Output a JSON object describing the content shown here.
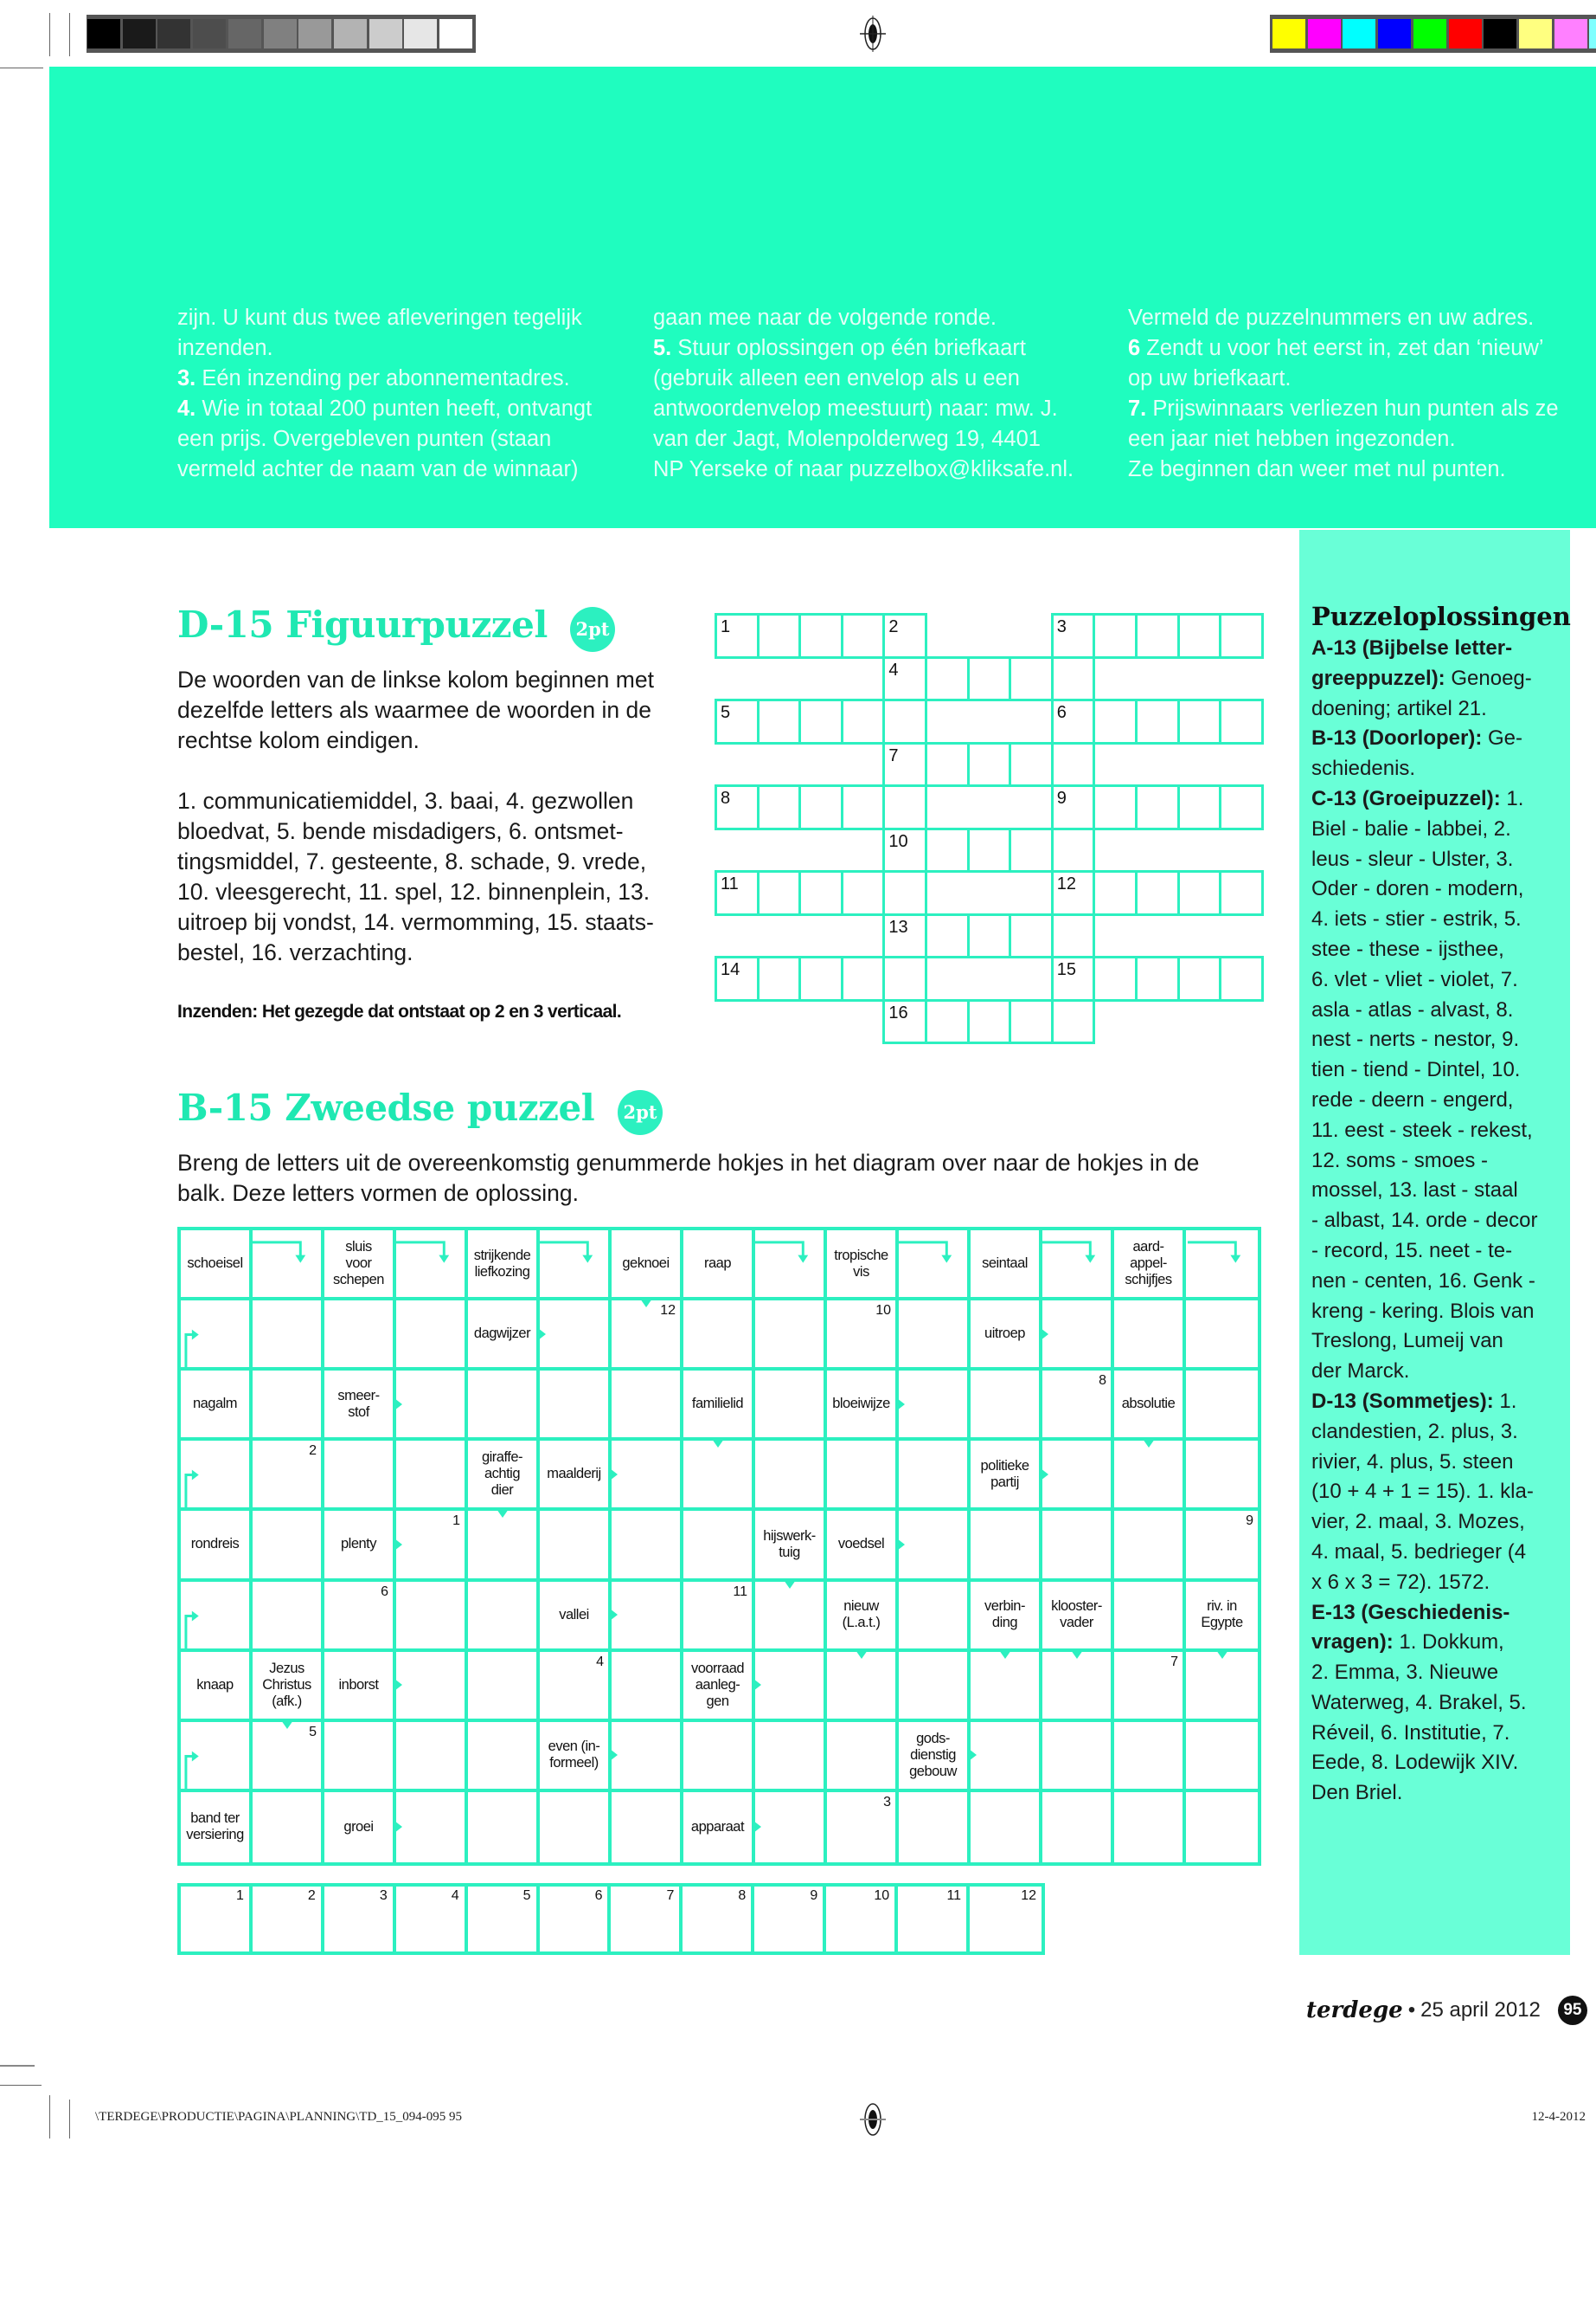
{
  "registration": {
    "gray_swatches": [
      "#000000",
      "#1a1a1a",
      "#333333",
      "#4d4d4d",
      "#666666",
      "#808080",
      "#999999",
      "#b3b3b3",
      "#cccccc",
      "#e6e6e6",
      "#ffffff"
    ],
    "color_swatches": [
      "#ffff00",
      "#ff00ff",
      "#00ffff",
      "#0000ff",
      "#00ff00",
      "#ff0000",
      "#000000",
      "#ffff80",
      "#ff80ff",
      "#80ffff"
    ]
  },
  "colors": {
    "accent": "#1ffdbf",
    "sidebar": "#69ffd7",
    "grid": "#2cf0c0",
    "title": "#1fe8b2"
  },
  "rules": {
    "columns": [
      [
        {
          "b": "",
          "t": "zijn. U kunt dus twee afleveringen tegelijk"
        },
        {
          "b": "",
          "t": "inzenden."
        },
        {
          "b": "3.",
          "t": " Eén inzending per abonnementadres."
        },
        {
          "b": "4.",
          "t": " Wie in totaal 200 punten heeft, ontvangt"
        },
        {
          "b": "",
          "t": "een prijs. Overgebleven punten (staan"
        },
        {
          "b": "",
          "t": "vermeld achter de naam van de winnaar)"
        }
      ],
      [
        {
          "b": "",
          "t": "gaan mee naar de volgende ronde."
        },
        {
          "b": "5.",
          "t": " Stuur oplossingen op één briefkaart"
        },
        {
          "b": "",
          "t": "(gebruik alleen een envelop als u een"
        },
        {
          "b": "",
          "t": "antwoordenvelop meestuurt) naar: mw. J."
        },
        {
          "b": "",
          "t": "van der Jagt, Molenpolderweg 19, 4401"
        },
        {
          "b": "",
          "t": "NP Yerseke of naar puzzelbox@kliksafe.nl."
        }
      ],
      [
        {
          "b": "",
          "t": "Vermeld de puzzelnummers en uw adres."
        },
        {
          "b": "6",
          "t": " Zendt u voor het eerst in, zet dan ‘nieuw’"
        },
        {
          "b": "",
          "t": "op uw briefkaart."
        },
        {
          "b": "7.",
          "t": " Prijswinnaars verliezen hun punten als ze"
        },
        {
          "b": "",
          "t": "een jaar niet hebben ingezonden."
        },
        {
          "b": "",
          "t": "Ze beginnen dan weer met nul punten."
        }
      ]
    ]
  },
  "d15": {
    "title": "D-15 Figuurpuzzel",
    "points": "2pt",
    "lines": [
      "De woorden van de linkse kolom beginnen met",
      "dezelfde letters als waarmee de woorden in de",
      "rechtse kolom eindigen.",
      "",
      "1. communicatiemiddel, 3. baai, 4. gezwollen",
      "bloedvat, 5. bende misdadigers, 6. ontsmet-",
      "tingsmiddel, 7. gesteente, 8. schade, 9. vrede,",
      "10. vleesgerecht, 11. spel, 12. binnenplein, 13.",
      "uitroep bij vondst, 14. vermomming, 15. staats-",
      "bestel, 16. verzachting."
    ],
    "submit": "Inzenden: Het gezegde dat ontstaat op 2 en 3 verticaal.",
    "grid": [
      [
        "1",
        "",
        "",
        "",
        "2",
        null,
        null,
        null,
        "3",
        "",
        "",
        "",
        ""
      ],
      [
        null,
        null,
        null,
        null,
        "4",
        "",
        "",
        "",
        "",
        null,
        null,
        null,
        null
      ],
      [
        "5",
        "",
        "",
        "",
        "",
        null,
        null,
        null,
        "6",
        "",
        "",
        "",
        ""
      ],
      [
        null,
        null,
        null,
        null,
        "7",
        "",
        "",
        "",
        "",
        null,
        null,
        null,
        null
      ],
      [
        "8",
        "",
        "",
        "",
        "",
        null,
        null,
        null,
        "9",
        "",
        "",
        "",
        ""
      ],
      [
        null,
        null,
        null,
        null,
        "10",
        "",
        "",
        "",
        "",
        null,
        null,
        null,
        null
      ],
      [
        "11",
        "",
        "",
        "",
        "",
        null,
        null,
        null,
        "12",
        "",
        "",
        "",
        ""
      ],
      [
        null,
        null,
        null,
        null,
        "13",
        "",
        "",
        "",
        "",
        null,
        null,
        null,
        null
      ],
      [
        "14",
        "",
        "",
        "",
        "",
        null,
        null,
        null,
        "15",
        "",
        "",
        "",
        ""
      ],
      [
        null,
        null,
        null,
        null,
        "16",
        "",
        "",
        "",
        "",
        null,
        null,
        null,
        null
      ]
    ]
  },
  "b15": {
    "title": "B-15 Zweedse puzzel",
    "points": "2pt",
    "lines": [
      "Breng de letters uit de overeenkomstig genummerde hokjes in het diagram over naar de hokjes in de",
      "balk. Deze letters vormen de oplossing."
    ],
    "rows": [
      [
        {
          "t": "schoeisel"
        },
        {
          "a": "corner-down"
        },
        {
          "t": "sluis\nvoor\nschepen"
        },
        {
          "a": "corner-down"
        },
        {
          "t": "strijkende\nliefkozing"
        },
        {
          "a": "corner-down"
        },
        {
          "t": "geknoei"
        },
        {
          "t": "raap"
        },
        {
          "a": "corner-down"
        },
        {
          "t": "tropische\nvis"
        },
        {
          "a": "corner-down"
        },
        {
          "t": "seintaal"
        },
        {
          "a": "corner-down"
        },
        {
          "t": "aard-\nappel-\nschijfjes"
        },
        {
          "a": "corner-down"
        }
      ],
      [
        {
          "a": "corner-right"
        },
        {},
        {},
        {},
        {
          "t": "dagwijzer",
          "a": "right"
        },
        {},
        {
          "n": "12",
          "a": "down"
        },
        {},
        {},
        {
          "n": "10"
        },
        {},
        {
          "t": "uitroep",
          "a": "right"
        },
        {},
        {},
        {}
      ],
      [
        {
          "t": "nagalm"
        },
        {},
        {
          "t": "smeer-\nstof",
          "a": "right"
        },
        {},
        {},
        {},
        {},
        {
          "t": "familielid"
        },
        {},
        {
          "t": "bloeiwijze",
          "a": "right"
        },
        {},
        {},
        {
          "n": "8"
        },
        {
          "t": "absolutie"
        },
        {}
      ],
      [
        {
          "a": "corner-right"
        },
        {
          "n": "2"
        },
        {},
        {},
        {
          "t": "giraffe-\nachtig\ndier"
        },
        {
          "t": "maalderij",
          "a": "right"
        },
        {},
        {
          "a": "down"
        },
        {},
        {},
        {},
        {
          "t": "politieke\npartij",
          "a": "right"
        },
        {},
        {
          "a": "down"
        },
        {}
      ],
      [
        {
          "t": "rondreis"
        },
        {},
        {
          "t": "plenty",
          "a": "right"
        },
        {
          "n": "1"
        },
        {
          "a": "down"
        },
        {},
        {},
        {},
        {
          "t": "hijswerk-\ntuig"
        },
        {
          "t": "voedsel",
          "a": "right"
        },
        {},
        {},
        {},
        {},
        {
          "n": "9"
        }
      ],
      [
        {
          "a": "corner-right"
        },
        {},
        {
          "n": "6"
        },
        {},
        {},
        {
          "t": "vallei",
          "a": "right"
        },
        {},
        {
          "n": "11"
        },
        {
          "a": "down"
        },
        {
          "t": "nieuw\n(L.a.t.)"
        },
        {},
        {
          "t": "verbin-\nding"
        },
        {
          "t": "klooster-\nvader"
        },
        {},
        {
          "t": "riv. in\nEgypte"
        }
      ],
      [
        {
          "t": "knaap"
        },
        {
          "t": "Jezus\nChristus\n(afk.)"
        },
        {
          "t": "inborst",
          "a": "right"
        },
        {},
        {},
        {
          "n": "4"
        },
        {},
        {
          "t": "voorraad\naanleg-\ngen",
          "a": "right"
        },
        {},
        {
          "a": "down"
        },
        {},
        {
          "a": "down"
        },
        {
          "a": "down"
        },
        {
          "n": "7"
        },
        {
          "a": "down"
        }
      ],
      [
        {
          "a": "corner-right"
        },
        {
          "n": "5",
          "a": "down"
        },
        {},
        {},
        {},
        {
          "t": "even (in-\nformeel)",
          "a": "right"
        },
        {},
        {},
        {},
        {},
        {
          "t": "gods-\ndienstig\ngebouw",
          "a": "right"
        },
        {},
        {},
        {},
        {}
      ],
      [
        {
          "t": "band ter\nversiering"
        },
        {},
        {
          "t": "groei",
          "a": "right"
        },
        {},
        {},
        {},
        {},
        {
          "t": "apparaat",
          "a": "right"
        },
        {},
        {
          "n": "3"
        },
        {},
        {},
        {},
        {},
        {}
      ]
    ],
    "answer": [
      "1",
      "2",
      "3",
      "4",
      "5",
      "6",
      "7",
      "8",
      "9",
      "10",
      "11",
      "12"
    ]
  },
  "solutions": {
    "title": "Puzzeloplossingen",
    "lines": [
      {
        "b": "A-13 (Bijbelse letter-",
        "t": ""
      },
      {
        "b": "greeppuzzel):",
        "t": " Genoeg-"
      },
      {
        "b": "",
        "t": "doening; artikel 21."
      },
      {
        "b": "B-13 (Doorloper):",
        "t": " Ge-"
      },
      {
        "b": "",
        "t": "schiedenis."
      },
      {
        "b": "C-13 (Groeipuzzel):",
        "t": " 1."
      },
      {
        "b": "",
        "t": "Biel - balie - labbei, 2."
      },
      {
        "b": "",
        "t": "leus - sleur - Ulster, 3."
      },
      {
        "b": "",
        "t": "Oder - doren - modern,"
      },
      {
        "b": "",
        "t": "4. iets - stier - estrik, 5."
      },
      {
        "b": "",
        "t": "stee - these - ijsthee,"
      },
      {
        "b": "",
        "t": "6. vlet - vliet - violet, 7."
      },
      {
        "b": "",
        "t": "asla - atlas - alvast, 8."
      },
      {
        "b": "",
        "t": "nest - nerts - nestor, 9."
      },
      {
        "b": "",
        "t": "tien - tiend - Dintel, 10."
      },
      {
        "b": "",
        "t": "rede - deern - engerd,"
      },
      {
        "b": "",
        "t": "11. eest - steek - rekest,"
      },
      {
        "b": "",
        "t": "12. soms - smoes -"
      },
      {
        "b": "",
        "t": "mossel, 13. last - staal"
      },
      {
        "b": "",
        "t": "- albast, 14. orde - decor"
      },
      {
        "b": "",
        "t": "- record, 15. neet - te-"
      },
      {
        "b": "",
        "t": "nen - centen, 16. Genk -"
      },
      {
        "b": "",
        "t": "kreng - kering. Blois van"
      },
      {
        "b": "",
        "t": "Treslong, Lumeij van"
      },
      {
        "b": "",
        "t": "der Marck."
      },
      {
        "b": "D-13 (Sommetjes):",
        "t": " 1."
      },
      {
        "b": "",
        "t": "clandestien, 2. plus, 3."
      },
      {
        "b": "",
        "t": "rivier, 4. plus, 5. steen"
      },
      {
        "b": "",
        "t": "(10 + 4 + 1 = 15). 1. kla-"
      },
      {
        "b": "",
        "t": "vier, 2. maal, 3. Mozes,"
      },
      {
        "b": "",
        "t": "4. maal, 5. bedrieger (4"
      },
      {
        "b": "",
        "t": "x 6 x 3 = 72). 1572."
      },
      {
        "b": "E-13 (Geschiedenis-",
        "t": ""
      },
      {
        "b": "vragen):",
        "t": " 1. Dokkum,"
      },
      {
        "b": "",
        "t": "2. Emma, 3. Nieuwe"
      },
      {
        "b": "",
        "t": "Waterweg, 4. Brakel, 5."
      },
      {
        "b": "",
        "t": "Réveil,  6. Institutie, 7."
      },
      {
        "b": "",
        "t": "Eede, 8. Lodewijk XIV."
      },
      {
        "b": "",
        "t": "Den Briel."
      }
    ]
  },
  "footer": {
    "logo": "terdege",
    "bullet": "•",
    "date": "25 april 2012",
    "page": "95"
  },
  "slug": {
    "path": "\\TERDEGE\\PRODUCTIE\\PAGINA\\PLANNING\\TD_15_094-095   95",
    "date": "12-4-2012"
  }
}
